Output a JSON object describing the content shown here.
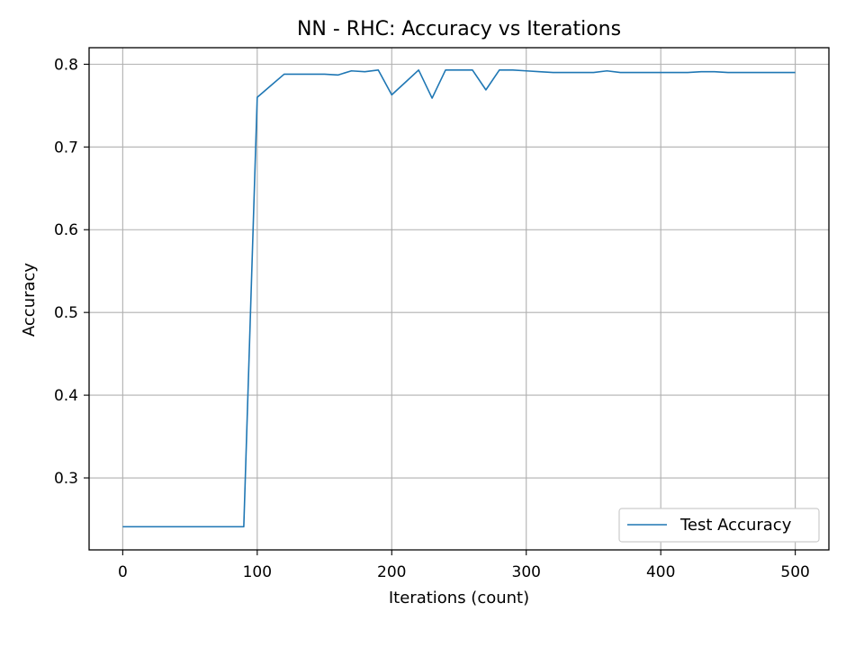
{
  "chart_data": {
    "type": "line",
    "title": "NN - RHC: Accuracy vs Iterations",
    "xlabel": "Iterations (count)",
    "ylabel": "Accuracy",
    "xlim": [
      -25,
      525
    ],
    "ylim": [
      0.213,
      0.82
    ],
    "xticks": [
      0,
      100,
      200,
      300,
      400,
      500
    ],
    "yticks": [
      0.3,
      0.4,
      0.5,
      0.6,
      0.7,
      0.8
    ],
    "xtick_labels": [
      "0",
      "100",
      "200",
      "300",
      "400",
      "500"
    ],
    "ytick_labels": [
      "0.3",
      "0.4",
      "0.5",
      "0.6",
      "0.7",
      "0.8"
    ],
    "grid": true,
    "legend_position": "lower-right",
    "series": [
      {
        "name": "Test Accuracy",
        "color": "#1f77b4",
        "x": [
          0,
          10,
          20,
          30,
          40,
          50,
          60,
          70,
          80,
          90,
          100,
          110,
          120,
          130,
          140,
          150,
          160,
          170,
          180,
          190,
          200,
          210,
          220,
          230,
          240,
          250,
          260,
          270,
          280,
          290,
          300,
          310,
          320,
          330,
          340,
          350,
          360,
          370,
          380,
          390,
          400,
          410,
          420,
          430,
          440,
          450,
          460,
          470,
          480,
          490,
          500
        ],
        "y": [
          0.241,
          0.241,
          0.241,
          0.241,
          0.241,
          0.241,
          0.241,
          0.241,
          0.241,
          0.241,
          0.76,
          0.774,
          0.788,
          0.788,
          0.788,
          0.788,
          0.787,
          0.792,
          0.791,
          0.793,
          0.763,
          0.778,
          0.793,
          0.759,
          0.793,
          0.793,
          0.793,
          0.769,
          0.793,
          0.793,
          0.792,
          0.791,
          0.79,
          0.79,
          0.79,
          0.79,
          0.792,
          0.79,
          0.79,
          0.79,
          0.79,
          0.79,
          0.79,
          0.791,
          0.791,
          0.79,
          0.79,
          0.79,
          0.79,
          0.79,
          0.79
        ]
      }
    ]
  }
}
